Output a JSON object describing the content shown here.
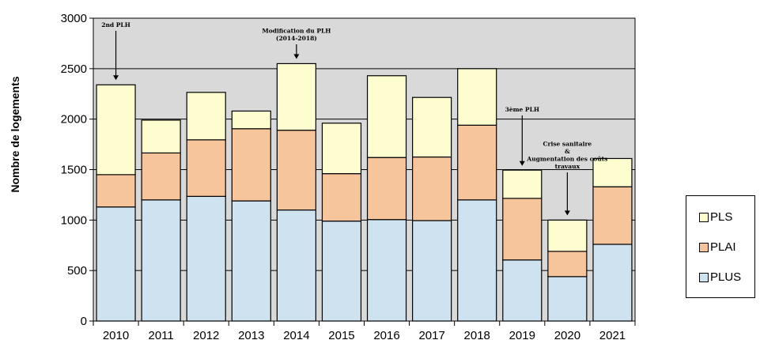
{
  "chart_data": {
    "type": "bar",
    "stacked": true,
    "categories": [
      "2010",
      "2011",
      "2012",
      "2013",
      "2014",
      "2015",
      "2016",
      "2017",
      "2018",
      "2019",
      "2020",
      "2021"
    ],
    "series": [
      {
        "name": "PLUS",
        "color": "#cfe2f0",
        "values": [
          1130,
          1200,
          1235,
          1190,
          1100,
          990,
          1005,
          995,
          1200,
          605,
          440,
          760
        ]
      },
      {
        "name": "PLAI",
        "color": "#f7c59b",
        "values": [
          320,
          465,
          560,
          715,
          790,
          470,
          615,
          630,
          740,
          610,
          250,
          570
        ]
      },
      {
        "name": "PLS",
        "color": "#fdfdd0",
        "values": [
          890,
          325,
          470,
          175,
          660,
          500,
          810,
          590,
          560,
          280,
          310,
          280
        ]
      }
    ],
    "ylabel": "Nombre de logements",
    "ylim": [
      0,
      3000
    ],
    "yticks": [
      0,
      500,
      1000,
      1500,
      2000,
      2500,
      3000
    ],
    "grid": true,
    "plot_background": "#d9d9d9",
    "legend": {
      "position": "right",
      "items": [
        "PLS",
        "PLAI",
        "PLUS"
      ]
    },
    "annotations": [
      {
        "lines": [
          "2nd PLH"
        ],
        "category": "2010",
        "arrow_to": 2340
      },
      {
        "lines": [
          "Modification du PLH",
          "(2014-2018)"
        ],
        "category": "2014",
        "arrow_to": 2550
      },
      {
        "lines": [
          "3ème PLH"
        ],
        "category": "2019",
        "arrow_to": 1490
      },
      {
        "lines": [
          "Crise sanitaire",
          "&",
          "Augmentation des coûts",
          "travaux"
        ],
        "category": "2020",
        "arrow_to": 1000
      }
    ]
  }
}
